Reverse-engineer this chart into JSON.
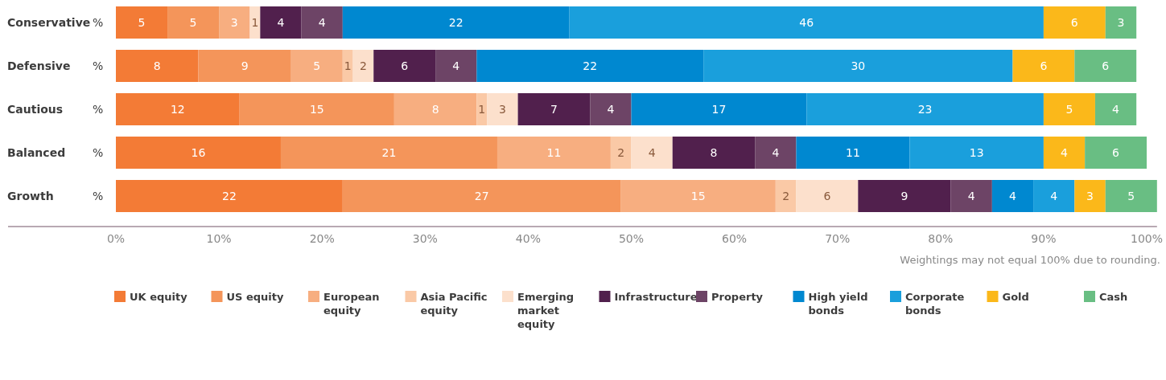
{
  "chart_data": {
    "type": "bar",
    "orientation": "horizontal",
    "stacked": true,
    "data_labels": true,
    "legend": "bottom",
    "grid": false,
    "ylabel": "%",
    "categories": [
      "Conservative",
      "Defensive",
      "Cautious",
      "Balanced",
      "Growth"
    ],
    "xlim": [
      0,
      101
    ],
    "xticks": [
      {
        "value": 0,
        "label": "0%"
      },
      {
        "value": 10,
        "label": "10%"
      },
      {
        "value": 20,
        "label": "20%"
      },
      {
        "value": 30,
        "label": "30%"
      },
      {
        "value": 40,
        "label": "40%"
      },
      {
        "value": 50,
        "label": "50%"
      },
      {
        "value": 60,
        "label": "60%"
      },
      {
        "value": 70,
        "label": "70%"
      },
      {
        "value": 80,
        "label": "80%"
      },
      {
        "value": 90,
        "label": "90%"
      },
      {
        "value": 100,
        "label": "100%"
      }
    ],
    "annotations": [
      "Weightings may not equal 100% due to rounding."
    ],
    "series": [
      {
        "name": "UK equity",
        "color": "#f37b36",
        "values": [
          5,
          8,
          12,
          16,
          22
        ]
      },
      {
        "name": "US equity",
        "color": "#f4955a",
        "values": [
          5,
          9,
          15,
          21,
          27
        ]
      },
      {
        "name": "European equity",
        "color": "#f7ae80",
        "values": [
          3,
          5,
          8,
          11,
          15
        ]
      },
      {
        "name": "Asia Pacific equity",
        "color": "#fac9a6",
        "values": [
          null,
          1,
          1,
          2,
          2
        ]
      },
      {
        "name": "Emerging market equity",
        "color": "#fce0cc",
        "values": [
          1,
          2,
          3,
          4,
          6
        ]
      },
      {
        "name": "Infrastructure",
        "color": "#51204d",
        "values": [
          4,
          6,
          7,
          8,
          9
        ]
      },
      {
        "name": "Property",
        "color": "#6d4466",
        "values": [
          4,
          4,
          4,
          4,
          4
        ]
      },
      {
        "name": "High yield bonds",
        "color": "#0088d0",
        "values": [
          22,
          22,
          17,
          11,
          4
        ]
      },
      {
        "name": "Corporate bonds",
        "color": "#1a9fdc",
        "values": [
          46,
          30,
          23,
          13,
          4
        ]
      },
      {
        "name": "Gold",
        "color": "#fbb81a",
        "values": [
          6,
          6,
          5,
          4,
          3
        ]
      },
      {
        "name": "Cash",
        "color": "#69be83",
        "values": [
          3,
          6,
          4,
          6,
          5
        ]
      }
    ]
  }
}
